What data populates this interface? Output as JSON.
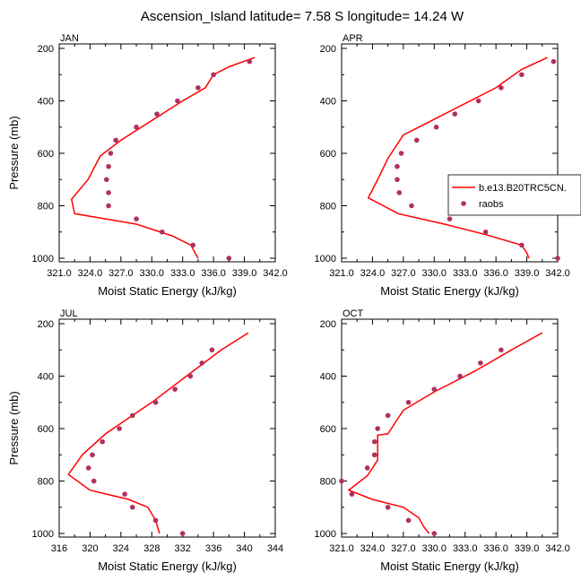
{
  "title": "Ascension_Island  latitude= 7.58 S longitude= 14.24 W",
  "colors": {
    "model": "#ff0000",
    "obs": "#b03060"
  },
  "legend": {
    "model_label": "b.e13.B20TRC5CN.",
    "obs_label": "raobs"
  },
  "chart_data": [
    {
      "type": "line",
      "month": "JAN",
      "xlabel": "Moist Static Energy (kJ/kg)",
      "ylabel": "Pressure (mb)",
      "xlim": [
        321,
        342
      ],
      "xticks": [
        "321.0",
        "324.0",
        "327.0",
        "330.0",
        "333.0",
        "336.0",
        "339.0",
        "342.0"
      ],
      "ylim": [
        200,
        1025
      ],
      "yticks": [
        200,
        400,
        600,
        800,
        1000
      ],
      "model": {
        "pressure": [
          235,
          270,
          300,
          350,
          400,
          450,
          500,
          550,
          610,
          700,
          775,
          830,
          870,
          915,
          950,
          1000
        ],
        "mse": [
          340.0,
          337.5,
          336.0,
          335.2,
          333.0,
          331.0,
          329.0,
          327.0,
          325.0,
          323.8,
          322.2,
          322.5,
          328.5,
          332.0,
          333.8,
          334.5
        ]
      },
      "raobs": {
        "pressure": [
          250,
          300,
          350,
          400,
          450,
          500,
          550,
          600,
          650,
          700,
          750,
          800,
          850,
          900,
          950,
          1000
        ],
        "mse": [
          339.5,
          336.0,
          334.5,
          332.5,
          330.5,
          328.5,
          326.5,
          326.0,
          325.8,
          325.6,
          325.8,
          325.8,
          328.5,
          331.0,
          334.0,
          337.5
        ]
      }
    },
    {
      "type": "line",
      "month": "APR",
      "xlabel": "Moist Static Energy (kJ/kg)",
      "ylabel": "",
      "xlim": [
        321,
        342
      ],
      "xticks": [
        "321.0",
        "324.0",
        "327.0",
        "330.0",
        "333.0",
        "336.0",
        "339.0",
        "342.0"
      ],
      "ylim": [
        200,
        1025
      ],
      "yticks": [
        200,
        400,
        600,
        800,
        1000
      ],
      "model": {
        "pressure": [
          235,
          280,
          350,
          420,
          500,
          530,
          620,
          700,
          770,
          830,
          870,
          910,
          950,
          980,
          1000
        ],
        "mse": [
          341.0,
          338.5,
          336.0,
          332.5,
          328.5,
          327.0,
          325.5,
          324.5,
          323.6,
          326.5,
          331.0,
          335.0,
          338.5,
          339.0,
          339.2
        ]
      },
      "raobs": {
        "pressure": [
          250,
          300,
          350,
          400,
          450,
          500,
          550,
          600,
          650,
          700,
          750,
          800,
          850,
          900,
          950,
          1000
        ],
        "mse": [
          341.6,
          338.5,
          336.5,
          334.3,
          332.0,
          330.2,
          328.3,
          326.8,
          326.4,
          326.4,
          326.6,
          327.8,
          331.5,
          335.0,
          338.5,
          342.0
        ]
      }
    },
    {
      "type": "line",
      "month": "JUL",
      "xlabel": "Moist Static Energy (kJ/kg)",
      "ylabel": "Pressure (mb)",
      "xlim": [
        316,
        344
      ],
      "xticks": [
        "316",
        "320",
        "324",
        "328",
        "332",
        "336",
        "340",
        "344"
      ],
      "ylim": [
        200,
        1025
      ],
      "yticks": [
        200,
        400,
        600,
        800,
        1000
      ],
      "model": {
        "pressure": [
          235,
          300,
          400,
          500,
          560,
          620,
          700,
          775,
          835,
          870,
          900,
          950,
          1000
        ],
        "mse": [
          340.5,
          337.0,
          332.5,
          328.0,
          325.0,
          322.0,
          319.0,
          317.2,
          320.0,
          325.0,
          327.5,
          328.5,
          329.0
        ]
      },
      "raobs": {
        "pressure": [
          300,
          350,
          400,
          450,
          500,
          550,
          600,
          650,
          700,
          750,
          800,
          850,
          900,
          950,
          1000
        ],
        "mse": [
          335.8,
          334.5,
          333.0,
          331.0,
          328.5,
          325.5,
          323.8,
          321.6,
          320.3,
          319.8,
          320.5,
          324.5,
          325.5,
          328.5,
          332.0
        ]
      }
    },
    {
      "type": "line",
      "month": "OCT",
      "xlabel": "Moist Static Energy (kJ/kg)",
      "ylabel": "",
      "xlim": [
        321,
        342
      ],
      "xticks": [
        "321.0",
        "324.0",
        "327.0",
        "330.0",
        "333.0",
        "336.0",
        "339.0",
        "342.0"
      ],
      "ylim": [
        200,
        1025
      ],
      "yticks": [
        200,
        400,
        600,
        800,
        1000
      ],
      "model": {
        "pressure": [
          235,
          300,
          380,
          460,
          530,
          620,
          625,
          720,
          780,
          835,
          870,
          900,
          940,
          975,
          1000
        ],
        "mse": [
          340.5,
          337.5,
          334.0,
          330.0,
          327.0,
          325.5,
          324.5,
          324.5,
          323.5,
          321.7,
          324.0,
          327.0,
          328.5,
          329.0,
          329.5
        ]
      },
      "raobs": {
        "pressure": [
          300,
          350,
          400,
          450,
          500,
          550,
          600,
          650,
          700,
          750,
          800,
          850,
          900,
          950,
          1000
        ],
        "mse": [
          336.5,
          334.5,
          332.5,
          330.0,
          327.5,
          325.5,
          324.5,
          324.2,
          324.2,
          323.5,
          321.0,
          322.0,
          325.5,
          327.5,
          330.0
        ]
      }
    }
  ]
}
